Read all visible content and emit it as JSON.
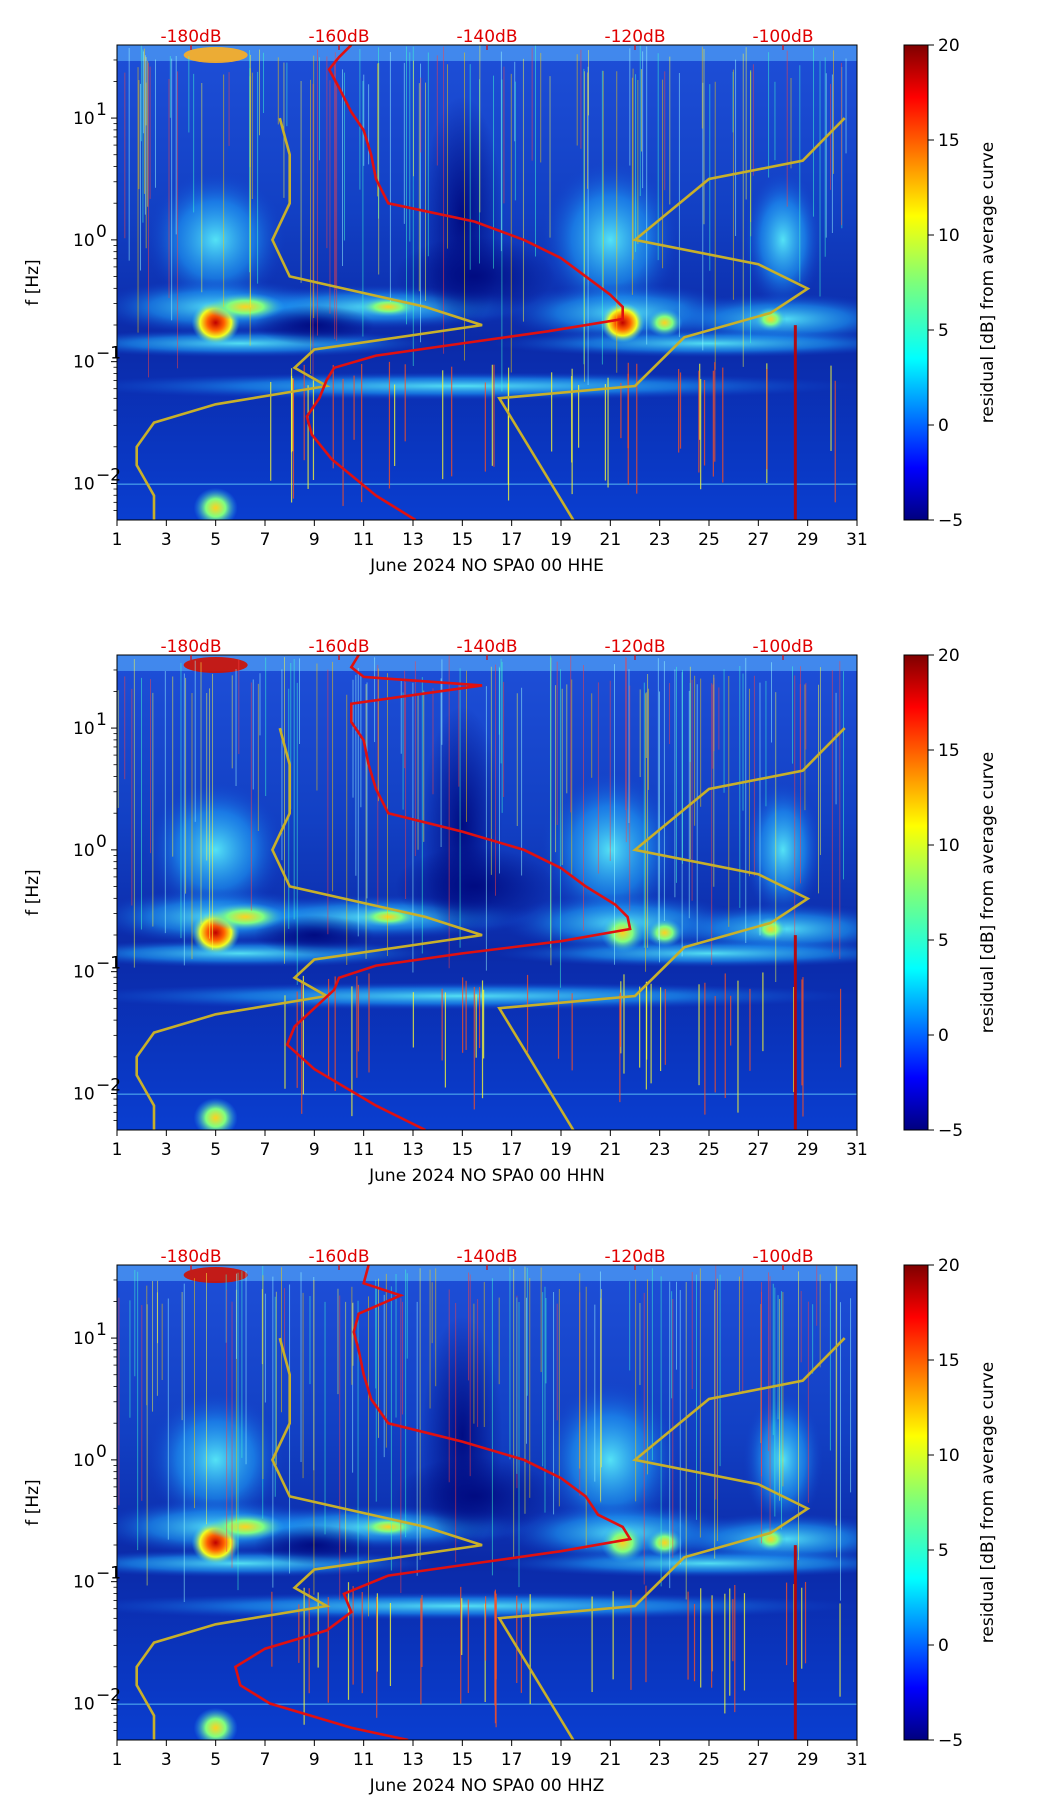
{
  "chart_data": [
    {
      "type": "heatmap",
      "title": "",
      "xlabel": "June 2024 NO SPA0 00 HHE",
      "ylabel": "f [Hz]",
      "xlim": [
        1,
        31
      ],
      "ylim_log10": [
        -2.3,
        1.6
      ],
      "x_ticks": [
        "1",
        "3",
        "5",
        "7",
        "9",
        "11",
        "13",
        "15",
        "17",
        "19",
        "21",
        "23",
        "25",
        "27",
        "29",
        "31"
      ],
      "y_ticks": [
        {
          "base": "10",
          "exp": "1",
          "value": 1
        },
        {
          "base": "10",
          "exp": "0",
          "value": 0
        },
        {
          "base": "10",
          "exp": "−1",
          "value": -1
        },
        {
          "base": "10",
          "exp": "−2",
          "value": -2
        }
      ],
      "db_ticks": [
        "-180dB",
        "-160dB",
        "-140dB",
        "-120dB",
        "-100dB"
      ],
      "colorbar": {
        "label": "residual [dB] from average curve",
        "min": -5,
        "max": 20,
        "ticks": [
          "20",
          "15",
          "10",
          "5",
          "0",
          "−5"
        ]
      },
      "noise_model_color": "#c8b02a",
      "mean_curve_color": "#e01010",
      "mean_curve": [
        [
          -2.3,
          13.1
        ],
        [
          -2.1,
          11.5
        ],
        [
          -1.8,
          9.7
        ],
        [
          -1.6,
          8.9
        ],
        [
          -1.45,
          8.7
        ],
        [
          -1.3,
          9.2
        ],
        [
          -1.15,
          9.5
        ],
        [
          -1.05,
          9.8
        ],
        [
          -0.95,
          11.5
        ],
        [
          -0.85,
          15.0
        ],
        [
          -0.75,
          18.5
        ],
        [
          -0.65,
          21.5
        ],
        [
          -0.55,
          21.5
        ],
        [
          -0.45,
          21.0
        ],
        [
          -0.3,
          20.0
        ],
        [
          -0.15,
          19.0
        ],
        [
          0.0,
          17.5
        ],
        [
          0.15,
          15.5
        ],
        [
          0.3,
          12.0
        ],
        [
          0.5,
          11.5
        ],
        [
          0.7,
          11.3
        ],
        [
          0.9,
          11.0
        ],
        [
          1.05,
          10.5
        ],
        [
          1.25,
          10.0
        ],
        [
          1.4,
          9.6
        ],
        [
          1.5,
          10.0
        ],
        [
          1.6,
          10.5
        ]
      ]
    },
    {
      "type": "heatmap",
      "title": "",
      "xlabel": "June 2024 NO SPA0 00 HHN",
      "ylabel": "f [Hz]",
      "xlim": [
        1,
        31
      ],
      "ylim_log10": [
        -2.3,
        1.6
      ],
      "x_ticks": [
        "1",
        "3",
        "5",
        "7",
        "9",
        "11",
        "13",
        "15",
        "17",
        "19",
        "21",
        "23",
        "25",
        "27",
        "29",
        "31"
      ],
      "y_ticks": [
        {
          "base": "10",
          "exp": "1",
          "value": 1
        },
        {
          "base": "10",
          "exp": "0",
          "value": 0
        },
        {
          "base": "10",
          "exp": "−1",
          "value": -1
        },
        {
          "base": "10",
          "exp": "−2",
          "value": -2
        }
      ],
      "db_ticks": [
        "-180dB",
        "-160dB",
        "-140dB",
        "-120dB",
        "-100dB"
      ],
      "colorbar": {
        "label": "residual [dB] from average curve",
        "min": -5,
        "max": 20,
        "ticks": [
          "20",
          "15",
          "10",
          "5",
          "0",
          "−5"
        ]
      },
      "noise_model_color": "#c8b02a",
      "mean_curve_color": "#e01010",
      "mean_curve": [
        [
          -2.3,
          13.5
        ],
        [
          -2.1,
          11.5
        ],
        [
          -1.8,
          9.0
        ],
        [
          -1.6,
          7.9
        ],
        [
          -1.45,
          8.2
        ],
        [
          -1.3,
          9.0
        ],
        [
          -1.15,
          9.8
        ],
        [
          -1.05,
          10.0
        ],
        [
          -0.95,
          11.5
        ],
        [
          -0.85,
          15.0
        ],
        [
          -0.75,
          19.0
        ],
        [
          -0.65,
          21.8
        ],
        [
          -0.55,
          21.7
        ],
        [
          -0.45,
          21.2
        ],
        [
          -0.3,
          20.0
        ],
        [
          -0.15,
          19.0
        ],
        [
          0.0,
          17.5
        ],
        [
          0.15,
          15.0
        ],
        [
          0.3,
          12.0
        ],
        [
          0.5,
          11.5
        ],
        [
          0.7,
          11.2
        ],
        [
          0.9,
          11.0
        ],
        [
          1.05,
          10.5
        ],
        [
          1.2,
          10.5
        ],
        [
          1.35,
          15.8
        ],
        [
          1.42,
          11.0
        ],
        [
          1.5,
          10.5
        ],
        [
          1.6,
          10.8
        ]
      ]
    },
    {
      "type": "heatmap",
      "title": "",
      "xlabel": "June 2024 NO SPA0 00 HHZ",
      "ylabel": "f [Hz]",
      "xlim": [
        1,
        31
      ],
      "ylim_log10": [
        -2.3,
        1.6
      ],
      "x_ticks": [
        "1",
        "3",
        "5",
        "7",
        "9",
        "11",
        "13",
        "15",
        "17",
        "19",
        "21",
        "23",
        "25",
        "27",
        "29",
        "31"
      ],
      "y_ticks": [
        {
          "base": "10",
          "exp": "1",
          "value": 1
        },
        {
          "base": "10",
          "exp": "0",
          "value": 0
        },
        {
          "base": "10",
          "exp": "−1",
          "value": -1
        },
        {
          "base": "10",
          "exp": "−2",
          "value": -2
        }
      ],
      "db_ticks": [
        "-180dB",
        "-160dB",
        "-140dB",
        "-120dB",
        "-100dB"
      ],
      "colorbar": {
        "label": "residual [dB] from average curve",
        "min": -5,
        "max": 20,
        "ticks": [
          "20",
          "15",
          "10",
          "5",
          "0",
          "−5"
        ]
      },
      "noise_model_color": "#c8b02a",
      "mean_curve_color": "#e01010",
      "mean_curve": [
        [
          -2.3,
          12.8
        ],
        [
          -2.2,
          10.5
        ],
        [
          -2.0,
          7.2
        ],
        [
          -1.85,
          6.0
        ],
        [
          -1.7,
          5.8
        ],
        [
          -1.55,
          7.0
        ],
        [
          -1.4,
          9.5
        ],
        [
          -1.25,
          10.5
        ],
        [
          -1.1,
          10.2
        ],
        [
          -0.95,
          12.0
        ],
        [
          -0.85,
          15.5
        ],
        [
          -0.75,
          19.0
        ],
        [
          -0.65,
          21.8
        ],
        [
          -0.55,
          21.5
        ],
        [
          -0.45,
          20.5
        ],
        [
          -0.3,
          20.0
        ],
        [
          -0.15,
          19.0
        ],
        [
          0.0,
          17.5
        ],
        [
          0.15,
          15.0
        ],
        [
          0.3,
          12.0
        ],
        [
          0.5,
          11.3
        ],
        [
          0.7,
          11.0
        ],
        [
          0.9,
          10.8
        ],
        [
          1.05,
          10.6
        ],
        [
          1.2,
          10.8
        ],
        [
          1.35,
          12.5
        ],
        [
          1.45,
          11.0
        ],
        [
          1.6,
          11.2
        ]
      ]
    }
  ],
  "noise_model": {
    "low": [
      [
        -2.3,
        2.5
      ],
      [
        -2.1,
        2.5
      ],
      [
        -1.85,
        1.8
      ],
      [
        -1.7,
        1.8
      ],
      [
        -1.5,
        2.5
      ],
      [
        -1.35,
        5.0
      ],
      [
        -1.2,
        9.5
      ],
      [
        -1.05,
        8.2
      ],
      [
        -0.9,
        9.0
      ],
      [
        -0.7,
        15.8
      ],
      [
        -0.55,
        13.5
      ],
      [
        -0.3,
        8.0
      ],
      [
        0.0,
        7.3
      ],
      [
        0.3,
        8.0
      ],
      [
        0.7,
        8.0
      ],
      [
        1.0,
        7.6
      ]
    ],
    "high": [
      [
        -2.3,
        19.5
      ],
      [
        -1.3,
        16.5
      ],
      [
        -1.2,
        22.0
      ],
      [
        -0.8,
        24.0
      ],
      [
        -0.6,
        27.5
      ],
      [
        -0.4,
        29.0
      ],
      [
        -0.2,
        27.0
      ],
      [
        0.0,
        22.0
      ],
      [
        0.5,
        25.0
      ],
      [
        0.65,
        28.8
      ],
      [
        1.0,
        30.5
      ]
    ]
  }
}
